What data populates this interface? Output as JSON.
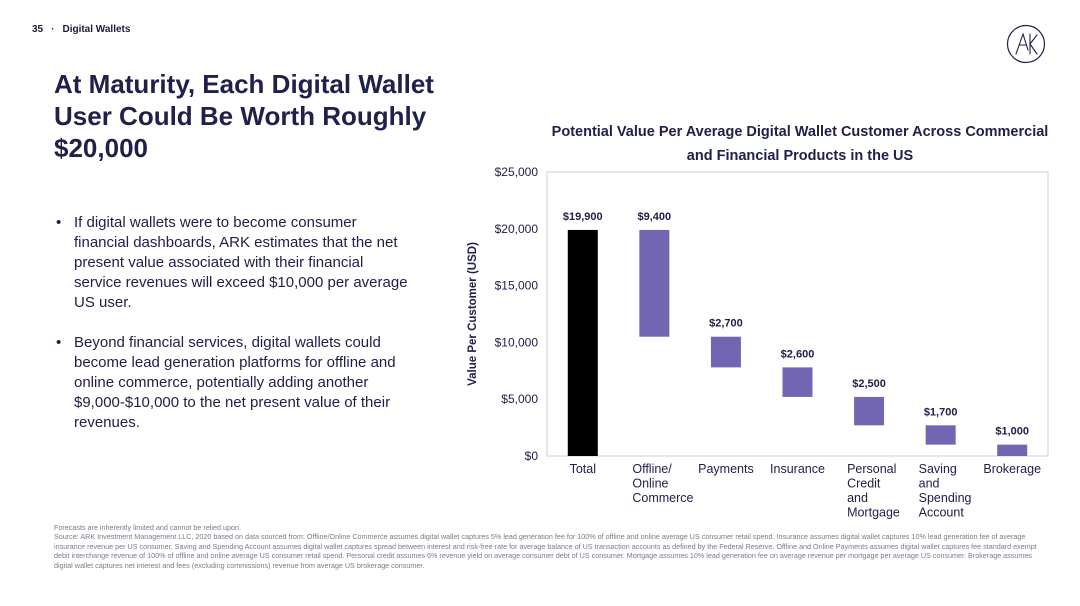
{
  "header": {
    "page_number": "35",
    "separator": "·",
    "section": "Digital Wallets"
  },
  "logo": {
    "icon": "ark-logo-icon"
  },
  "title": "At Maturity, Each Digital Wallet User Could Be Worth Roughly $20,000",
  "bullets": [
    "If digital wallets were to become consumer financial dashboards, ARK estimates that the net present value associated with their financial service revenues will exceed $10,000 per average US user.",
    "Beyond financial services, digital wallets could become lead generation platforms for offline and online commerce, potentially adding another $9,000-$10,000 to the net present value of their revenues."
  ],
  "chart_data": {
    "type": "bar",
    "subtype": "waterfall",
    "title": "Potential Value Per Average Digital Wallet Customer Across Commercial and Financial Products in the US",
    "ylabel": "Value Per Customer (USD)",
    "xlabel": "",
    "ylim": [
      0,
      25000
    ],
    "yticks": [
      0,
      5000,
      10000,
      15000,
      20000,
      25000
    ],
    "ytick_labels": [
      "$0",
      "$5,000",
      "$10,000",
      "$15,000",
      "$20,000",
      "$25,000"
    ],
    "grid": false,
    "categories": [
      [
        "Total"
      ],
      [
        "Offline/",
        "Online",
        "Commerce"
      ],
      [
        "Payments"
      ],
      [
        "Insurance"
      ],
      [
        "Personal",
        "Credit",
        "and",
        "Mortgage"
      ],
      [
        "Saving",
        "and",
        "Spending",
        "Account"
      ],
      [
        "Brokerage"
      ]
    ],
    "values": [
      19900,
      9400,
      2700,
      2600,
      2500,
      1700,
      1000
    ],
    "value_labels": [
      "$19,900",
      "$9,400",
      "$2,700",
      "$2,600",
      "$2,500",
      "$1,700",
      "$1,000"
    ],
    "colors": {
      "total": "#000000",
      "component": "#7266b3"
    }
  },
  "footnote": {
    "line1": "Forecasts are inherently limited and cannot be relied upon.",
    "source": "Source: ARK Investment Management LLC, 2020 based on data sourced from: Offline/Online Commerce assumes digital wallet captures 5% lead generation fee for 100% of offline and online average US consumer retail spend. Insurance assumes digital wallet captures 10% lead generation fee of average insurance revenue per US consumer. Saving and Spending Account assumes digital wallet captures spread between interest and risk-free rate for average balance of US transaction accounts as defined by the Federal Reserve. Offline and Online Payments assumes digital wallet captures fee standard exempt debit interchange revenue of 100% of offline and online average US consumer retail spend. Personal credit assumes 6% revenue yield on average consumer debt of US consumer. Mortgage assumes 10% lead generation fee on average revenue per mortgage per average US consumer. Brokerage assumes digital wallet captures net interest and fees (excluding commissions) revenue from average US brokerage consumer."
  }
}
